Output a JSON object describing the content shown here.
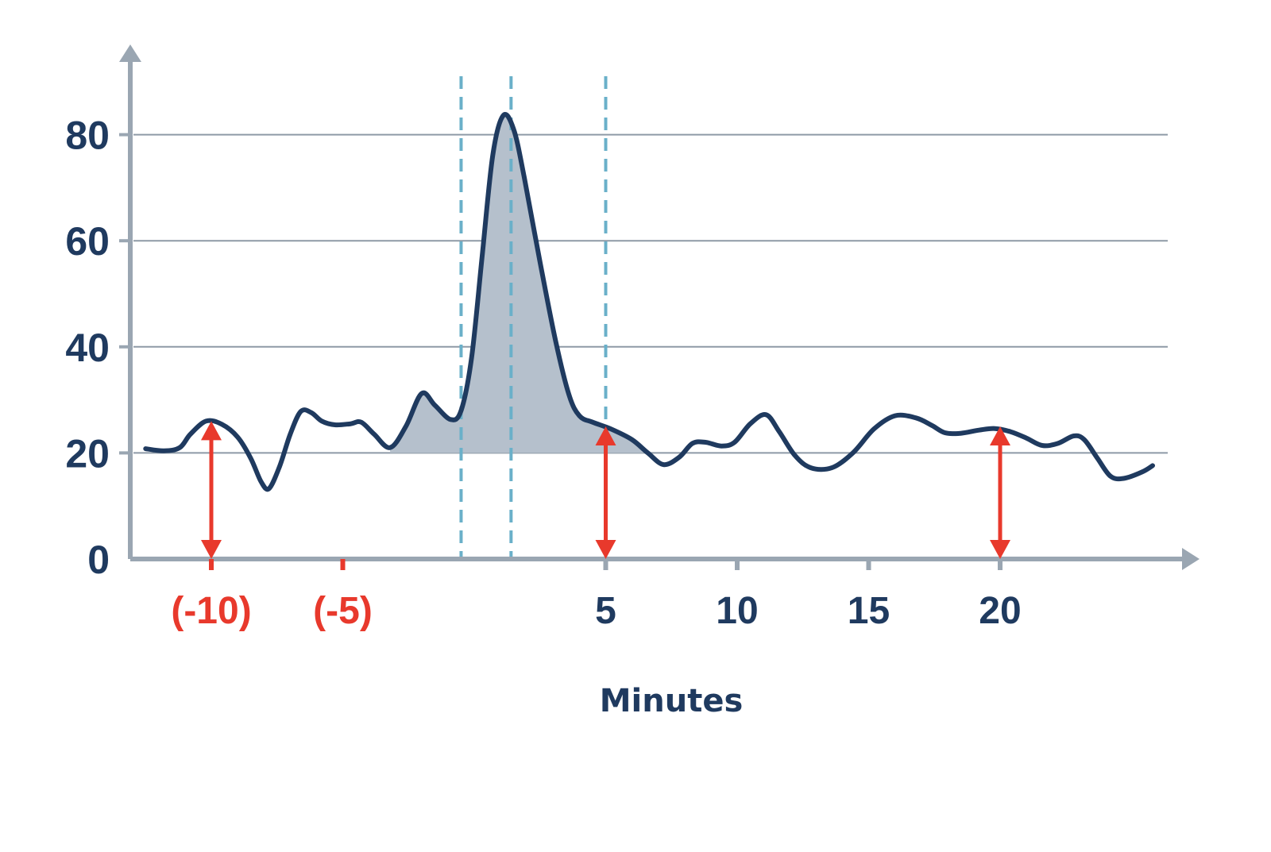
{
  "chart_data": {
    "type": "line",
    "xlabel": "Minutes",
    "ylabel": "",
    "title": "",
    "xlim": [
      -13,
      26
    ],
    "ylim": [
      0,
      92
    ],
    "y_ticks": [
      0,
      20,
      40,
      60,
      80
    ],
    "y_tick_labels": [
      "0",
      "20",
      "40",
      "60",
      "80"
    ],
    "x_ticks": [
      {
        "value": -10,
        "label": "(-10)",
        "color": "#e8392c"
      },
      {
        "value": -5,
        "label": "(-5)",
        "color": "#e8392c"
      },
      {
        "value": 5,
        "label": "5",
        "color": "#1f3a5f"
      },
      {
        "value": 10,
        "label": "10",
        "color": "#1f3a5f"
      },
      {
        "value": 15,
        "label": "15",
        "color": "#1f3a5f"
      },
      {
        "value": 20,
        "label": "20",
        "color": "#1f3a5f"
      }
    ],
    "gridlines_y": [
      20,
      40,
      60,
      80
    ],
    "series": [
      {
        "color": "#1f3a5f",
        "points": [
          [
            -12.5,
            20.8
          ],
          [
            -11.8,
            20.4
          ],
          [
            -11.2,
            21.0
          ],
          [
            -10.8,
            23.5
          ],
          [
            -10.2,
            26.0
          ],
          [
            -9.6,
            25.4
          ],
          [
            -9.0,
            23.0
          ],
          [
            -8.5,
            19.0
          ],
          [
            -8.1,
            14.5
          ],
          [
            -7.8,
            13.3
          ],
          [
            -7.4,
            17.5
          ],
          [
            -7.0,
            23.5
          ],
          [
            -6.6,
            27.8
          ],
          [
            -6.2,
            27.6
          ],
          [
            -5.8,
            26.0
          ],
          [
            -5.3,
            25.3
          ],
          [
            -4.7,
            25.5
          ],
          [
            -4.3,
            25.8
          ],
          [
            -3.8,
            23.5
          ],
          [
            -3.2,
            21.0
          ],
          [
            -2.6,
            25.0
          ],
          [
            -2.0,
            31.2
          ],
          [
            -1.5,
            29.0
          ],
          [
            -0.9,
            26.3
          ],
          [
            -0.5,
            28.0
          ],
          [
            -0.1,
            38.0
          ],
          [
            0.3,
            57.0
          ],
          [
            0.7,
            76.0
          ],
          [
            1.1,
            83.6
          ],
          [
            1.5,
            81.0
          ],
          [
            1.9,
            72.0
          ],
          [
            2.5,
            56.0
          ],
          [
            3.1,
            41.0
          ],
          [
            3.6,
            31.0
          ],
          [
            4.0,
            27.0
          ],
          [
            4.5,
            25.8
          ],
          [
            5.2,
            24.5
          ],
          [
            6.0,
            22.5
          ],
          [
            6.6,
            20.0
          ],
          [
            7.2,
            17.8
          ],
          [
            7.8,
            19.2
          ],
          [
            8.3,
            21.8
          ],
          [
            8.8,
            22.0
          ],
          [
            9.4,
            21.3
          ],
          [
            9.9,
            22.0
          ],
          [
            10.5,
            25.5
          ],
          [
            11.1,
            27.2
          ],
          [
            11.6,
            24.0
          ],
          [
            12.2,
            19.5
          ],
          [
            12.8,
            17.2
          ],
          [
            13.6,
            17.2
          ],
          [
            14.4,
            20.0
          ],
          [
            15.2,
            24.5
          ],
          [
            16.0,
            27.0
          ],
          [
            16.8,
            26.6
          ],
          [
            17.4,
            25.2
          ],
          [
            17.9,
            23.8
          ],
          [
            18.5,
            23.7
          ],
          [
            19.2,
            24.3
          ],
          [
            19.8,
            24.6
          ],
          [
            20.4,
            24.0
          ],
          [
            21.0,
            22.8
          ],
          [
            21.6,
            21.4
          ],
          [
            22.2,
            21.8
          ],
          [
            22.8,
            23.2
          ],
          [
            23.2,
            22.5
          ],
          [
            23.7,
            19.0
          ],
          [
            24.2,
            15.6
          ],
          [
            24.7,
            15.2
          ],
          [
            25.4,
            16.4
          ],
          [
            25.8,
            17.6
          ]
        ]
      }
    ],
    "shaded_region": {
      "from": -3.2,
      "to": 6.6,
      "baseline": 20,
      "color": "#b5c0cc"
    },
    "vertical_dashed_lines": [
      -0.5,
      1.4,
      5
    ],
    "arrows": [
      {
        "x": -10,
        "from": 0,
        "to": 26
      },
      {
        "x": 5,
        "from": 0,
        "to": 25
      },
      {
        "x": 20,
        "from": 0,
        "to": 25
      }
    ],
    "colors": {
      "axis": "#9aa6b2",
      "grid": "#8e9aa6",
      "line": "#1f3a5f",
      "fill": "#b5c0cc",
      "dashed": "#6ab0c9",
      "arrow": "#e8392c",
      "neg_label": "#e8392c",
      "label": "#1f3a5f"
    }
  }
}
